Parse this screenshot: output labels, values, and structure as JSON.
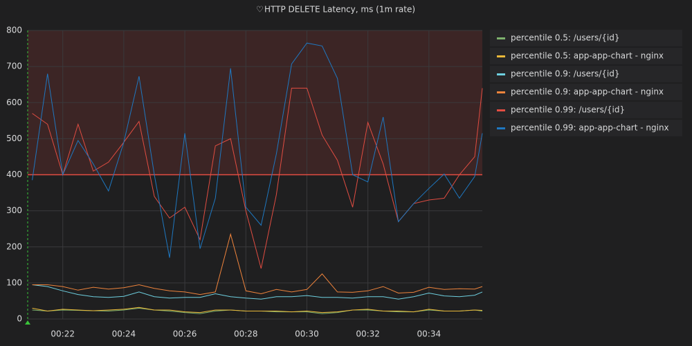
{
  "chart_data": {
    "type": "line",
    "title": "HTTP DELETE Latency, ms (1m rate)",
    "x": [
      21,
      21.5,
      22,
      22.5,
      23,
      23.5,
      24,
      24.5,
      25,
      25.5,
      26,
      26.5,
      27,
      27.5,
      28,
      28.5,
      29,
      29.5,
      30,
      30.5,
      31,
      31.5,
      32,
      32.5,
      33,
      33.5,
      34,
      34.5,
      35,
      35.5,
      35.75
    ],
    "xlim": [
      20.85,
      35.75
    ],
    "xticks": [
      {
        "value": 22,
        "label": "00:22"
      },
      {
        "value": 24,
        "label": "00:24"
      },
      {
        "value": 26,
        "label": "00:26"
      },
      {
        "value": 28,
        "label": "00:28"
      },
      {
        "value": 30,
        "label": "00:30"
      },
      {
        "value": 32,
        "label": "00:32"
      },
      {
        "value": 34,
        "label": "00:34"
      }
    ],
    "ylim": [
      0,
      800
    ],
    "yticks": [
      0,
      100,
      200,
      300,
      400,
      500,
      600,
      700,
      800
    ],
    "grid": true,
    "threshold": 400,
    "threshold_color": "#e24d42",
    "legend": "right",
    "series": [
      {
        "name": "percentile 0.5: /users/{id}",
        "color": "#7eb26d",
        "values": [
          25,
          22,
          25,
          24,
          23,
          22,
          25,
          30,
          25,
          22,
          18,
          15,
          22,
          25,
          22,
          22,
          20,
          20,
          20,
          15,
          18,
          25,
          25,
          22,
          20,
          20,
          25,
          22,
          22,
          25,
          22
        ]
      },
      {
        "name": "percentile 0.5: app-app-chart - nginx",
        "color": "#eab839",
        "values": [
          30,
          22,
          27,
          25,
          23,
          25,
          27,
          32,
          25,
          25,
          20,
          18,
          25,
          25,
          22,
          22,
          22,
          20,
          22,
          18,
          20,
          25,
          27,
          22,
          22,
          20,
          27,
          22,
          22,
          25,
          24
        ]
      },
      {
        "name": "percentile 0.9: /users/{id}",
        "color": "#6ed0e0",
        "values": [
          95,
          90,
          78,
          68,
          62,
          60,
          63,
          75,
          62,
          58,
          60,
          60,
          70,
          62,
          58,
          55,
          62,
          62,
          65,
          60,
          60,
          58,
          62,
          62,
          55,
          62,
          72,
          64,
          62,
          66,
          75
        ]
      },
      {
        "name": "percentile 0.9: app-app-chart - nginx",
        "color": "#ef843c",
        "values": [
          95,
          95,
          90,
          80,
          88,
          83,
          87,
          95,
          85,
          78,
          75,
          68,
          75,
          235,
          78,
          70,
          82,
          75,
          82,
          125,
          75,
          74,
          78,
          90,
          72,
          74,
          88,
          82,
          84,
          83,
          90
        ]
      },
      {
        "name": "percentile 0.99: /users/{id}",
        "color": "#e24d42",
        "values": [
          570,
          540,
          400,
          540,
          410,
          435,
          490,
          548,
          340,
          280,
          310,
          220,
          480,
          500,
          300,
          140,
          345,
          640,
          640,
          510,
          440,
          310,
          545,
          430,
          270,
          320,
          330,
          335,
          400,
          450,
          640
        ]
      },
      {
        "name": "percentile 0.99: app-app-chart - nginx",
        "color": "#1f78c1",
        "values": [
          385,
          680,
          400,
          495,
          430,
          355,
          490,
          673,
          400,
          170,
          515,
          195,
          335,
          695,
          310,
          260,
          458,
          707,
          765,
          757,
          667,
          400,
          380,
          560,
          270,
          320,
          362,
          402,
          335,
          395,
          515
        ]
      }
    ]
  }
}
